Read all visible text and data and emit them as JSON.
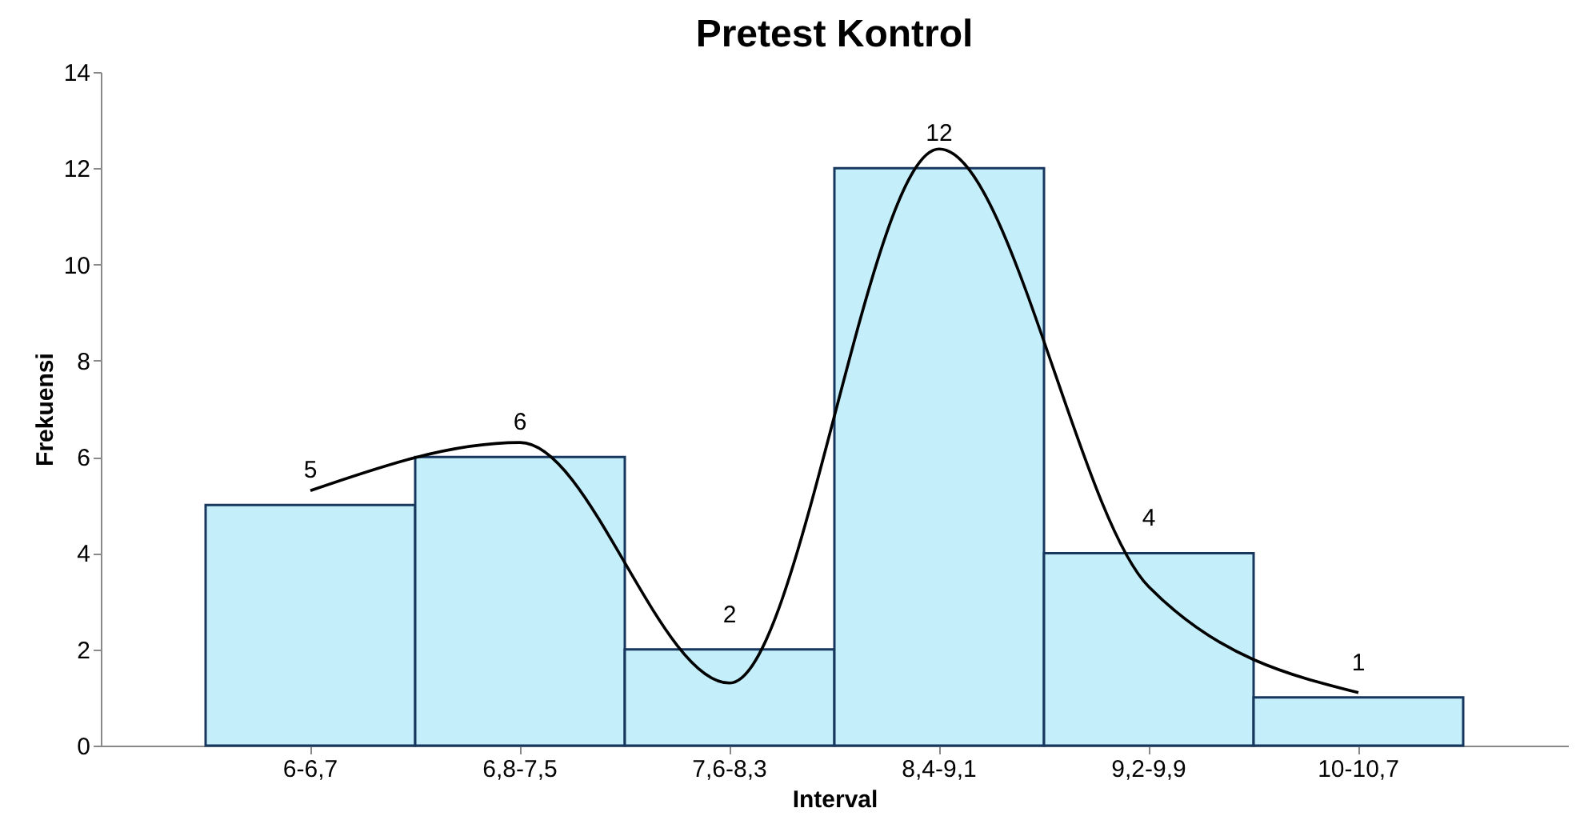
{
  "chart_data": {
    "type": "bar",
    "title": "Pretest Kontrol",
    "xlabel": "Interval",
    "ylabel": "Frekuensi",
    "categories": [
      "6-6,7",
      "6,8-7,5",
      "7,6-8,3",
      "8,4-9,1",
      "9,2-9,9",
      "10-10,7"
    ],
    "series": [
      {
        "color": "#c4eef9",
        "values": [
          5,
          6,
          2,
          12,
          4,
          1
        ],
        "value_labels": [
          "5",
          "6",
          "2",
          "12",
          "4",
          "1"
        ]
      },
      {
        "type": "line",
        "color": "#000000",
        "values": [
          5.3,
          6.3,
          1.3,
          12.4,
          3.3,
          1.1
        ],
        "marker": "none",
        "line_style": "solid"
      }
    ],
    "ylim": [
      0,
      14
    ],
    "yticks": [
      0,
      2,
      4,
      6,
      8,
      10,
      12,
      14
    ],
    "grid": false
  }
}
